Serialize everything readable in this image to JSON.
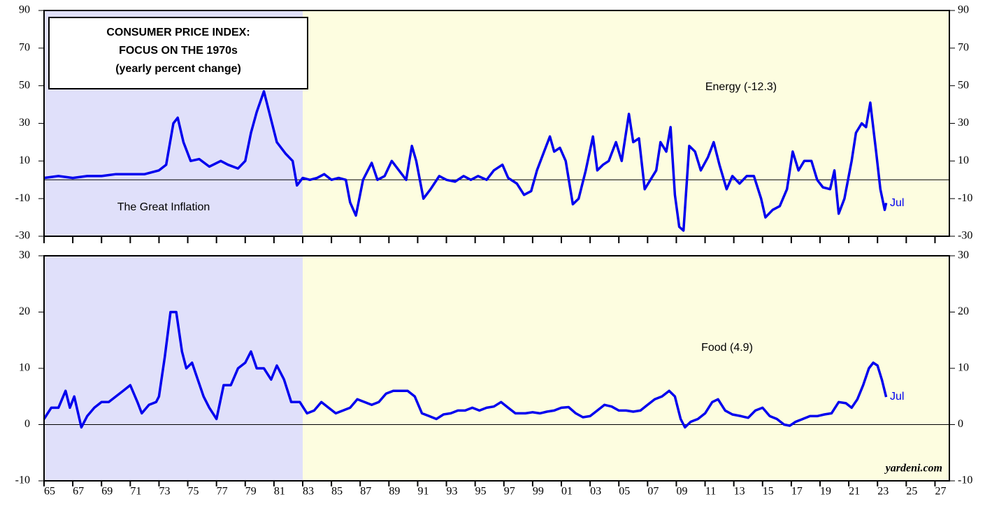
{
  "chart_data": [
    {
      "type": "line",
      "title": [
        "CONSUMER PRICE INDEX:",
        "FOCUS ON THE 1970s",
        "(yearly percent change)"
      ],
      "annotations": [
        "The Great Inflation",
        "Jul"
      ],
      "xlim": [
        1965,
        2028
      ],
      "ylim": [
        -30,
        90
      ],
      "yticks": [
        -30,
        -10,
        10,
        30,
        50,
        70,
        90
      ],
      "shade": [
        {
          "from": 1965,
          "to": 1983,
          "color": "#e0e0fa"
        },
        {
          "from": 1983,
          "to": 2028,
          "color": "#fdfde0"
        }
      ],
      "series": [
        {
          "name": "Energy (-12.3)",
          "color": "#0000ee",
          "x": [
            1965.0,
            1966,
            1967,
            1968,
            1969,
            1970,
            1971,
            1972,
            1973,
            1973.5,
            1974.0,
            1974.3,
            1974.7,
            1975.2,
            1975.8,
            1976.5,
            1977.3,
            1977.8,
            1978.5,
            1979.0,
            1979.4,
            1979.8,
            1980.3,
            1980.7,
            1981.2,
            1981.8,
            1982.3,
            1982.6,
            1983.0,
            1983.5,
            1984,
            1984.5,
            1985,
            1985.5,
            1986.0,
            1986.3,
            1986.7,
            1987.2,
            1987.8,
            1988.2,
            1988.7,
            1989.2,
            1989.7,
            1990.2,
            1990.6,
            1990.9,
            1991.4,
            1991.9,
            1992.5,
            1993,
            1993.6,
            1994.2,
            1994.7,
            1995.2,
            1995.8,
            1996.3,
            1996.9,
            1997.3,
            1997.9,
            1998.4,
            1998.9,
            1999.3,
            1999.8,
            2000.2,
            2000.5,
            2000.9,
            2001.3,
            2001.8,
            2002.2,
            2002.7,
            2003.2,
            2003.5,
            2003.9,
            2004.3,
            2004.8,
            2005.2,
            2005.7,
            2006.0,
            2006.4,
            2006.8,
            2007.2,
            2007.6,
            2007.9,
            2008.3,
            2008.6,
            2008.9,
            2009.2,
            2009.5,
            2009.9,
            2010.3,
            2010.7,
            2011.2,
            2011.6,
            2012.0,
            2012.5,
            2012.9,
            2013.4,
            2013.9,
            2014.4,
            2014.9,
            2015.2,
            2015.7,
            2016.2,
            2016.7,
            2017.1,
            2017.5,
            2017.9,
            2018.4,
            2018.8,
            2019.2,
            2019.7,
            2020.0,
            2020.3,
            2020.7,
            2021.2,
            2021.5,
            2021.9,
            2022.2,
            2022.5,
            2022.9,
            2023.2,
            2023.5,
            2023.6
          ],
          "values": [
            1,
            2,
            1,
            2,
            2,
            3,
            3,
            3,
            5,
            8,
            30,
            33,
            20,
            10,
            11,
            7,
            10,
            8,
            6,
            10,
            25,
            36,
            47,
            35,
            20,
            14,
            10,
            -3,
            1,
            0,
            1,
            3,
            0,
            1,
            0,
            -12,
            -19,
            0,
            9,
            0,
            2,
            10,
            5,
            0,
            18,
            10,
            -10,
            -5,
            2,
            0,
            -1,
            2,
            0,
            2,
            0,
            5,
            8,
            1,
            -2,
            -8,
            -6,
            5,
            15,
            23,
            15,
            17,
            10,
            -13,
            -10,
            5,
            23,
            5,
            8,
            10,
            20,
            10,
            35,
            20,
            22,
            -5,
            0,
            5,
            20,
            15,
            28,
            -8,
            -25,
            -27,
            18,
            15,
            5,
            12,
            20,
            8,
            -5,
            2,
            -2,
            2,
            2,
            -10,
            -20,
            -16,
            -14,
            -5,
            15,
            5,
            10,
            10,
            0,
            -4,
            -5,
            5,
            -18,
            -10,
            10,
            25,
            30,
            28,
            41,
            15,
            -5,
            -16,
            -12.3
          ]
        }
      ]
    },
    {
      "type": "line",
      "annotations": [
        "Jul",
        "yardeni.com"
      ],
      "xlim": [
        1965,
        2028
      ],
      "ylim": [
        -10,
        30
      ],
      "yticks": [
        -10,
        0,
        10,
        20,
        30
      ],
      "xticks": [
        {
          "value": 1965,
          "label": "65"
        },
        {
          "value": 1967,
          "label": "67"
        },
        {
          "value": 1969,
          "label": "69"
        },
        {
          "value": 1971,
          "label": "71"
        },
        {
          "value": 1973,
          "label": "73"
        },
        {
          "value": 1975,
          "label": "75"
        },
        {
          "value": 1977,
          "label": "77"
        },
        {
          "value": 1979,
          "label": "79"
        },
        {
          "value": 1981,
          "label": "81"
        },
        {
          "value": 1983,
          "label": "83"
        },
        {
          "value": 1985,
          "label": "85"
        },
        {
          "value": 1987,
          "label": "87"
        },
        {
          "value": 1989,
          "label": "89"
        },
        {
          "value": 1991,
          "label": "91"
        },
        {
          "value": 1993,
          "label": "93"
        },
        {
          "value": 1995,
          "label": "95"
        },
        {
          "value": 1997,
          "label": "97"
        },
        {
          "value": 1999,
          "label": "99"
        },
        {
          "value": 2001,
          "label": "01"
        },
        {
          "value": 2003,
          "label": "03"
        },
        {
          "value": 2005,
          "label": "05"
        },
        {
          "value": 2007,
          "label": "07"
        },
        {
          "value": 2009,
          "label": "09"
        },
        {
          "value": 2011,
          "label": "11"
        },
        {
          "value": 2013,
          "label": "13"
        },
        {
          "value": 2015,
          "label": "15"
        },
        {
          "value": 2017,
          "label": "17"
        },
        {
          "value": 2019,
          "label": "19"
        },
        {
          "value": 2021,
          "label": "21"
        },
        {
          "value": 2023,
          "label": "23"
        },
        {
          "value": 2025,
          "label": "25"
        },
        {
          "value": 2027,
          "label": "27"
        }
      ],
      "shade": [
        {
          "from": 1965,
          "to": 1983,
          "color": "#e0e0fa"
        },
        {
          "from": 1983,
          "to": 2028,
          "color": "#fdfde0"
        }
      ],
      "series": [
        {
          "name": "Food (4.9)",
          "color": "#0000ee",
          "x": [
            1965.0,
            1965.5,
            1966.0,
            1966.5,
            1966.8,
            1967.1,
            1967.6,
            1968,
            1968.5,
            1969,
            1969.5,
            1970,
            1970.5,
            1971,
            1971.5,
            1971.8,
            1972.3,
            1972.8,
            1973.0,
            1973.4,
            1973.8,
            1974.2,
            1974.6,
            1974.9,
            1975.3,
            1975.7,
            1976.1,
            1976.5,
            1977.0,
            1977.5,
            1978.0,
            1978.5,
            1979.0,
            1979.4,
            1979.8,
            1980.3,
            1980.8,
            1981.2,
            1981.7,
            1982.2,
            1982.8,
            1983.3,
            1983.8,
            1984.3,
            1984.8,
            1985.3,
            1985.8,
            1986.3,
            1986.8,
            1987.3,
            1987.8,
            1988.3,
            1988.8,
            1989.3,
            1989.8,
            1990.3,
            1990.8,
            1991.3,
            1991.8,
            1992.3,
            1992.8,
            1993.3,
            1993.8,
            1994.3,
            1994.8,
            1995.3,
            1995.8,
            1996.3,
            1996.8,
            1997.3,
            1997.8,
            1998.5,
            1999,
            1999.5,
            2000,
            2000.5,
            2001,
            2001.5,
            2002,
            2002.5,
            2003,
            2003.5,
            2004,
            2004.5,
            2005,
            2005.5,
            2006,
            2006.5,
            2007,
            2007.5,
            2008,
            2008.5,
            2008.9,
            2009.3,
            2009.6,
            2010,
            2010.5,
            2011,
            2011.5,
            2011.9,
            2012.4,
            2012.9,
            2013.5,
            2014,
            2014.5,
            2015,
            2015.5,
            2016,
            2016.5,
            2016.9,
            2017.3,
            2017.8,
            2018.3,
            2018.8,
            2019.3,
            2019.8,
            2020.3,
            2020.8,
            2021.2,
            2021.6,
            2022.0,
            2022.4,
            2022.7,
            2023.0,
            2023.3,
            2023.6
          ],
          "values": [
            1,
            3,
            3,
            6,
            3,
            5,
            -0.5,
            1.5,
            3,
            4,
            4,
            5,
            6,
            7,
            4,
            2,
            3.5,
            4,
            5,
            12,
            20,
            20,
            13,
            10,
            11,
            8,
            5,
            3,
            1,
            7,
            7,
            10,
            11,
            13,
            10,
            10,
            8,
            10.5,
            8,
            4,
            4,
            2,
            2.5,
            4,
            3,
            2,
            2.5,
            3,
            4.5,
            4,
            3.5,
            4,
            5.5,
            6,
            6,
            6,
            5,
            2,
            1.5,
            1,
            1.8,
            2,
            2.5,
            2.5,
            3,
            2.5,
            3,
            3.2,
            4,
            3,
            2,
            2,
            2.2,
            2,
            2.3,
            2.5,
            3,
            3.1,
            2,
            1.3,
            1.5,
            2.5,
            3.5,
            3.2,
            2.5,
            2.5,
            2.3,
            2.5,
            3.5,
            4.5,
            5,
            6,
            5,
            1,
            -0.5,
            0.5,
            1,
            2,
            4,
            4.5,
            2.5,
            1.8,
            1.5,
            1.2,
            2.5,
            3,
            1.5,
            1,
            0,
            -0.2,
            0.5,
            1,
            1.5,
            1.5,
            1.8,
            2,
            4,
            3.8,
            3,
            4.5,
            7,
            10,
            11,
            10.5,
            8,
            4.9
          ]
        }
      ]
    }
  ]
}
